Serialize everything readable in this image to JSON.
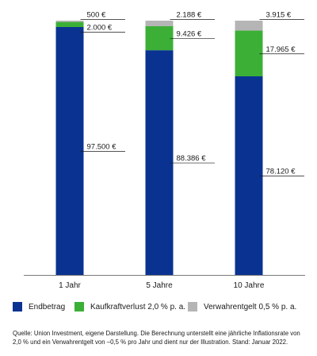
{
  "chart_data": {
    "type": "bar",
    "stacked": true,
    "categories": [
      "1 Jahr",
      "5 Jahre",
      "10 Jahre"
    ],
    "series": [
      {
        "name": "Endbetrag",
        "color": "#0a3391",
        "values": [
          97500,
          88386,
          78120
        ],
        "labels": [
          "97.500 €",
          "88.386 €",
          "78.120 €"
        ]
      },
      {
        "name": "Kaufkraftverlust 2,0 % p. a.",
        "color": "#3cb036",
        "values": [
          2000,
          9426,
          17965
        ],
        "labels": [
          "2.000 €",
          "9.426 €",
          "17.965 €"
        ]
      },
      {
        "name": "Verwahrentgelt 0,5 % p. a.",
        "color": "#b5b5b5",
        "values": [
          500,
          2188,
          3915
        ],
        "labels": [
          "500 €",
          "2.188 €",
          "3.915 €"
        ]
      }
    ],
    "ylim": [
      0,
      100000
    ],
    "grid": false,
    "legend_position": "bottom"
  },
  "source_note": "Quelle: Union Investment, eigene Darstellung. Die Berechnung unterstellt eine jährliche Inflationsrate von 2,0 % und ein Verwahrentgelt von –0,5 % pro Jahr und dient nur der Illustration. Stand: Januar 2022."
}
